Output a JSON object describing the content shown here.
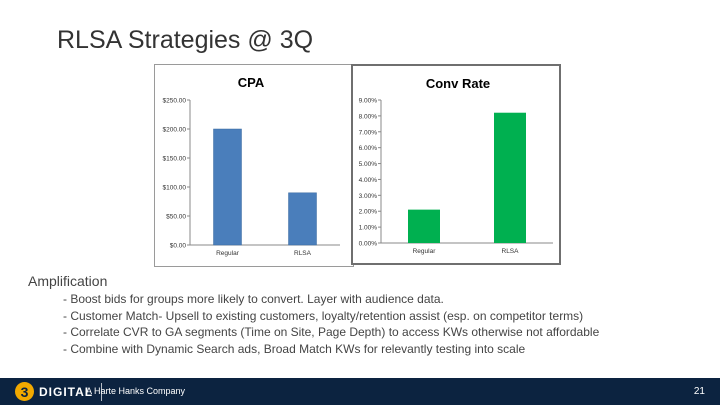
{
  "slide": {
    "title": "RLSA Strategies @ 3Q",
    "amplification_heading": "Amplification",
    "bullets": [
      "- Boost bids for groups more likely to convert. Layer with audience data.",
      "- Customer Match- Upsell to existing customers, loyalty/retention assist (esp. on competitor terms)",
      "- Correlate CVR to GA segments (Time on Site, Page Depth) to access KWs otherwise not affordable",
      "- Combine with Dynamic Search ads, Broad Match KWs for relevantly testing into scale"
    ]
  },
  "footer": {
    "logo_mark": "3",
    "logo_text": "DIGITAL",
    "company": "A Harte Hanks Company",
    "page_number": "21",
    "background_color": "#0c2340",
    "logo_color": "#f2a900"
  },
  "chart_data": [
    {
      "type": "bar",
      "title": "CPA",
      "categories": [
        "Regular",
        "RLSA"
      ],
      "values": [
        200,
        90
      ],
      "ylim": [
        0,
        250
      ],
      "yticks": [
        0,
        50,
        100,
        150,
        200,
        250
      ],
      "ytick_labels": [
        "$0.00",
        "$50.00",
        "$100.00",
        "$150.00",
        "$200.00",
        "$250.00"
      ],
      "bar_color": "#4a7ebb",
      "grid": false
    },
    {
      "type": "bar",
      "title": "Conv Rate",
      "categories": [
        "Regular",
        "RLSA"
      ],
      "values": [
        2.1,
        8.2
      ],
      "ylim": [
        0,
        9
      ],
      "yticks": [
        0,
        1,
        2,
        3,
        4,
        5,
        6,
        7,
        8,
        9
      ],
      "ytick_labels": [
        "0.00%",
        "1.00%",
        "2.00%",
        "3.00%",
        "4.00%",
        "5.00%",
        "6.00%",
        "7.00%",
        "8.00%",
        "9.00%"
      ],
      "bar_color": "#00b050",
      "grid": false
    }
  ]
}
